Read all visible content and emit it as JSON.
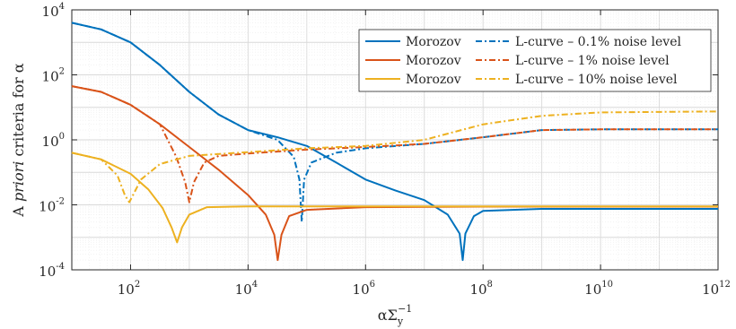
{
  "chart_data": {
    "type": "line",
    "title": "",
    "xlabel": "αΣ",
    "xlabel_sub": "y",
    "xlabel_sup": "−1",
    "ylabel": "A priori criteria for α",
    "ylabel_parts": {
      "a": "A ",
      "b": "priori",
      "c": " criteria for α"
    },
    "xscale": "log",
    "yscale": "log",
    "xlim": [
      10,
      1000000000000
    ],
    "ylim": [
      0.0001,
      10000
    ],
    "grid": true,
    "legend_position": "top-right",
    "x_ticks": [
      {
        "base": "10",
        "exp": "2",
        "value": 100
      },
      {
        "base": "10",
        "exp": "4",
        "value": 10000
      },
      {
        "base": "10",
        "exp": "6",
        "value": 1000000
      },
      {
        "base": "10",
        "exp": "8",
        "value": 100000000
      },
      {
        "base": "10",
        "exp": "10",
        "value": 10000000000
      },
      {
        "base": "10",
        "exp": "12",
        "value": 1000000000000
      }
    ],
    "y_ticks": [
      {
        "base": "10",
        "exp": "4",
        "value": 10000
      },
      {
        "base": "10",
        "exp": "2",
        "value": 100
      },
      {
        "base": "10",
        "exp": "0",
        "value": 1
      },
      {
        "base": "10",
        "exp": "-2",
        "value": 0.01
      },
      {
        "base": "10",
        "exp": "-4",
        "value": 0.0001
      }
    ],
    "legend": [
      {
        "morozov_label": "Morozov",
        "lcurve_label": "L-curve – 0.1% noise level",
        "color": "#0072BD"
      },
      {
        "morozov_label": "Morozov",
        "lcurve_label": "L-curve – 1% noise level",
        "color": "#D95319"
      },
      {
        "morozov_label": "Morozov",
        "lcurve_label": "L-curve – 10% noise level",
        "color": "#EDB120"
      }
    ],
    "series": [
      {
        "group": "Morozov (0.1% noise)",
        "style": "solid",
        "color": "#0072BD",
        "points": [
          [
            10,
            4000
          ],
          [
            31.6,
            2500
          ],
          [
            100,
            1000
          ],
          [
            316,
            200
          ],
          [
            1000,
            30
          ],
          [
            3160,
            6
          ],
          [
            10000,
            2
          ],
          [
            31600,
            1.2
          ],
          [
            100000,
            0.65
          ],
          [
            316000,
            0.2
          ],
          [
            1000000,
            0.06
          ],
          [
            3160000,
            0.028
          ],
          [
            10000000,
            0.014
          ],
          [
            25000000,
            0.005
          ],
          [
            40000000,
            0.0013
          ],
          [
            45000000,
            0.0002
          ],
          [
            50000000,
            0.0013
          ],
          [
            70000000,
            0.0045
          ],
          [
            100000000,
            0.0065
          ],
          [
            1000000000,
            0.0075
          ],
          [
            10000000000,
            0.0075
          ],
          [
            1000000000000,
            0.0075
          ]
        ]
      },
      {
        "group": "L-curve – 0.1% noise level",
        "style": "dashdot",
        "color": "#0072BD",
        "points": [
          [
            10,
            4000
          ],
          [
            31.6,
            2500
          ],
          [
            100,
            1000
          ],
          [
            316,
            200
          ],
          [
            1000,
            30
          ],
          [
            3160,
            6
          ],
          [
            10000,
            2
          ],
          [
            31600,
            1
          ],
          [
            60000,
            0.3
          ],
          [
            75000,
            0.06
          ],
          [
            82000,
            0.003
          ],
          [
            90000,
            0.06
          ],
          [
            120000,
            0.2
          ],
          [
            316000,
            0.4
          ],
          [
            1000000,
            0.55
          ],
          [
            10000000,
            0.75
          ],
          [
            100000000,
            1.2
          ],
          [
            1000000000,
            2
          ],
          [
            10000000000,
            2.1
          ],
          [
            1000000000000,
            2.1
          ]
        ]
      },
      {
        "group": "Morozov (1% noise)",
        "style": "solid",
        "color": "#D95319",
        "points": [
          [
            10,
            45
          ],
          [
            31.6,
            30
          ],
          [
            100,
            12
          ],
          [
            316,
            3
          ],
          [
            1000,
            0.6
          ],
          [
            3160,
            0.12
          ],
          [
            10000,
            0.02
          ],
          [
            20000,
            0.005
          ],
          [
            28000,
            0.0012
          ],
          [
            32000,
            0.0002
          ],
          [
            37000,
            0.0012
          ],
          [
            50000,
            0.0045
          ],
          [
            100000,
            0.007
          ],
          [
            1000000,
            0.0085
          ],
          [
            100000000,
            0.0088
          ],
          [
            1000000000000,
            0.0088
          ]
        ]
      },
      {
        "group": "L-curve – 1% noise level",
        "style": "dashdot",
        "color": "#D95319",
        "points": [
          [
            10,
            45
          ],
          [
            31.6,
            30
          ],
          [
            100,
            12
          ],
          [
            316,
            3
          ],
          [
            600,
            0.3
          ],
          [
            850,
            0.05
          ],
          [
            1000,
            0.012
          ],
          [
            1200,
            0.05
          ],
          [
            1800,
            0.2
          ],
          [
            3160,
            0.32
          ],
          [
            10000,
            0.38
          ],
          [
            100000,
            0.5
          ],
          [
            1000000,
            0.6
          ],
          [
            10000000,
            0.75
          ],
          [
            100000000,
            1.2
          ],
          [
            1000000000,
            2
          ],
          [
            10000000000,
            2.1
          ],
          [
            1000000000000,
            2.1
          ]
        ]
      },
      {
        "group": "Morozov (10% noise)",
        "style": "solid",
        "color": "#EDB120",
        "points": [
          [
            10,
            0.4
          ],
          [
            31.6,
            0.25
          ],
          [
            100,
            0.09
          ],
          [
            200,
            0.03
          ],
          [
            350,
            0.008
          ],
          [
            500,
            0.002
          ],
          [
            620,
            0.0007
          ],
          [
            750,
            0.002
          ],
          [
            1000,
            0.005
          ],
          [
            2000,
            0.0085
          ],
          [
            10000,
            0.009
          ],
          [
            1000000,
            0.009
          ],
          [
            1000000000000,
            0.009
          ]
        ]
      },
      {
        "group": "L-curve – 10% noise level",
        "style": "dashdot",
        "color": "#EDB120",
        "points": [
          [
            10,
            0.4
          ],
          [
            31.6,
            0.25
          ],
          [
            60,
            0.08
          ],
          [
            80,
            0.02
          ],
          [
            95,
            0.012
          ],
          [
            110,
            0.02
          ],
          [
            150,
            0.06
          ],
          [
            316,
            0.18
          ],
          [
            1000,
            0.32
          ],
          [
            10000,
            0.42
          ],
          [
            100000,
            0.55
          ],
          [
            1000000,
            0.65
          ],
          [
            10000000,
            1
          ],
          [
            100000000,
            3
          ],
          [
            1000000000,
            5.5
          ],
          [
            10000000000,
            7
          ],
          [
            1000000000000,
            7.5
          ]
        ]
      }
    ]
  }
}
